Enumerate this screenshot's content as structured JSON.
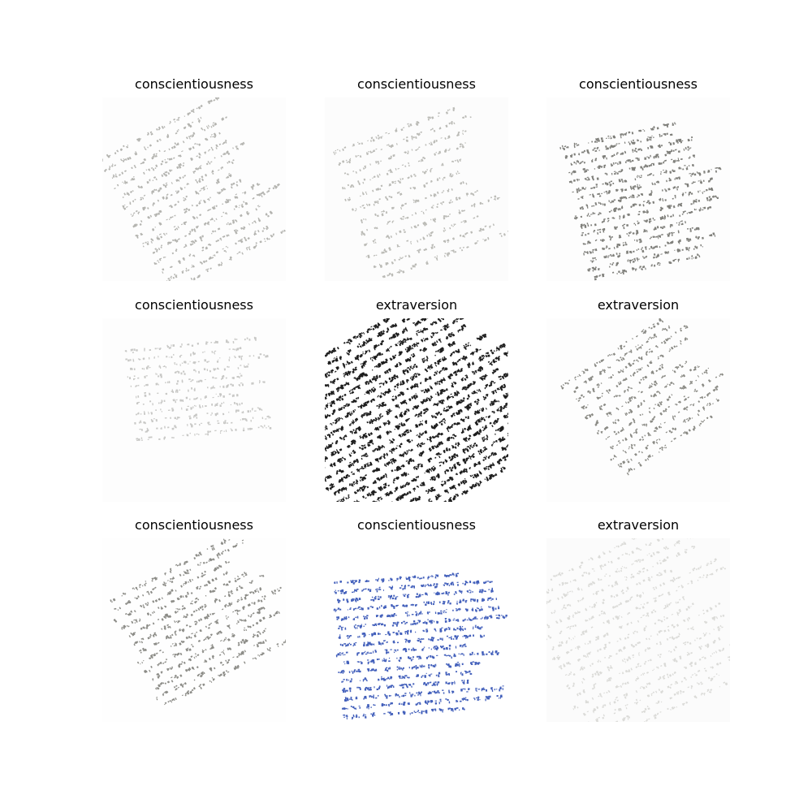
{
  "panels": [
    {
      "label": "conscientiousness",
      "ink": "#7a7a72",
      "bg": "#fdfdfd"
    },
    {
      "label": "conscientiousness",
      "ink": "#86867e",
      "bg": "#fcfcfc"
    },
    {
      "label": "conscientiousness",
      "ink": "#55554f",
      "bg": "#fdfdfd"
    },
    {
      "label": "conscientiousness",
      "ink": "#8a8a84",
      "bg": "#fdfdfd"
    },
    {
      "label": "extraversion",
      "ink": "#111111",
      "bg": "#ffffff"
    },
    {
      "label": "extraversion",
      "ink": "#5a5a52",
      "bg": "#fdfdfd"
    },
    {
      "label": "conscientiousness",
      "ink": "#5c5c55",
      "bg": "#fefefe"
    },
    {
      "label": "conscientiousness",
      "ink": "#2f4fb4",
      "bg": "#ffffff"
    },
    {
      "label": "extraversion",
      "ink": "#a2a29a",
      "bg": "#fbfbfb"
    }
  ]
}
